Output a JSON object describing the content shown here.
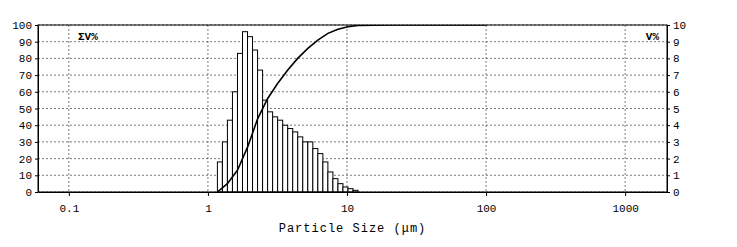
{
  "chart_data": {
    "type": "histogram",
    "x_label": "Particle Size (μm)",
    "y_label": "ΣV%",
    "y2_label": "V%",
    "log": "x",
    "grid": true,
    "xlim": [
      0.06,
      2000
    ],
    "xticks": [
      0.1,
      1,
      10,
      100,
      1000
    ],
    "ylim": [
      0,
      100
    ],
    "yticks": [
      0,
      10,
      20,
      30,
      40,
      50,
      60,
      70,
      80,
      90,
      100
    ],
    "y2lim": [
      0,
      10
    ],
    "y2ticks": [
      0,
      1,
      2,
      3,
      4,
      5,
      6,
      7,
      8,
      9,
      10
    ],
    "series": [
      {
        "type": "histogram",
        "axis": "y2",
        "color": "#ffffff",
        "bins": [
          1.17,
          1.271,
          1.381,
          1.501,
          1.631,
          1.773,
          1.926,
          2.093,
          2.275,
          2.472,
          2.686,
          2.919,
          3.172,
          3.448,
          3.747,
          4.071,
          4.424,
          4.808,
          5.226,
          5.679,
          6.171,
          6.706,
          7.288,
          7.92,
          8.607,
          9.354,
          10.16,
          11.05,
          12.0
        ],
        "values": [
          1.8,
          3.0,
          4.3,
          6.0,
          8.3,
          9.6,
          9.3,
          8.5,
          7.3,
          5.5,
          4.8,
          4.5,
          4.3,
          4.0,
          3.8,
          3.6,
          3.3,
          3.0,
          3.0,
          2.6,
          2.3,
          1.8,
          1.2,
          0.8,
          0.5,
          0.3,
          0.2,
          0.1
        ]
      },
      {
        "type": "line",
        "color": "#000000",
        "x": [
          1.17,
          1.38,
          1.63,
          1.93,
          2.28,
          2.69,
          3.17,
          3.75,
          4.42,
          5.23,
          6.17,
          7.29,
          8.61,
          10.16,
          12,
          20,
          50,
          100
        ],
        "values": [
          0,
          5,
          13,
          27,
          44,
          56,
          65,
          73,
          80,
          86,
          91,
          95,
          97.5,
          99,
          99.7,
          100,
          100,
          100
        ]
      }
    ]
  }
}
